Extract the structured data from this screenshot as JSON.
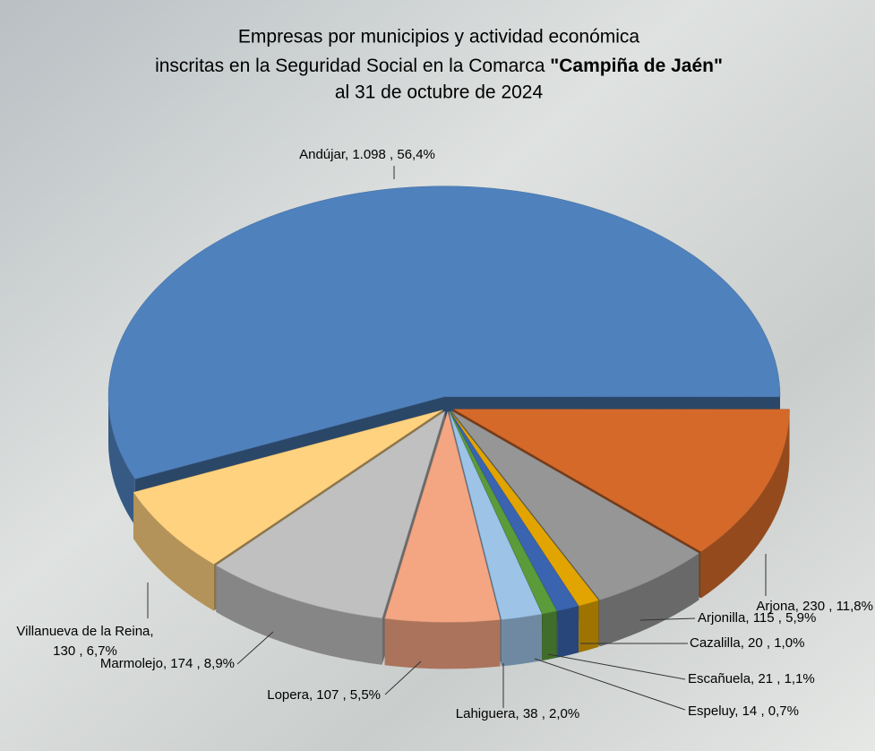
{
  "chart_data": {
    "type": "pie3d",
    "title": [
      "Empresas por municipios y actividad económica",
      "inscritas en la Seguridad Social en la Comarca ",
      "\"Campiña de Jaén\"",
      "al 31 de octubre de 2024"
    ],
    "values": [
      1098,
      230,
      115,
      20,
      21,
      14,
      38,
      107,
      174,
      130
    ],
    "value_labels": [
      "Andújar, 1.098 , 56,4%",
      "Arjona, 230 , 11,8%",
      "Arjonilla, 115 , 5,9%",
      "Cazalilla, 20 , 1,0%",
      "Escañuela, 21 , 1,1%",
      "Espeluy, 14 , 0,7%",
      "Lahiguera, 38 , 2,0%",
      "Lopera, 107 , 5,5%",
      "Marmolejo, 174 , 8,9%",
      [
        "Villanueva de la Reina,",
        "130 , 6,7%"
      ]
    ],
    "colors": [
      "#4f81bd",
      "#d4692a",
      "#969696",
      "#e2a400",
      "#3a64b0",
      "#5b9b3a",
      "#9dc3e6",
      "#f4a582",
      "#c0c0c0",
      "#ffd27f"
    ]
  }
}
